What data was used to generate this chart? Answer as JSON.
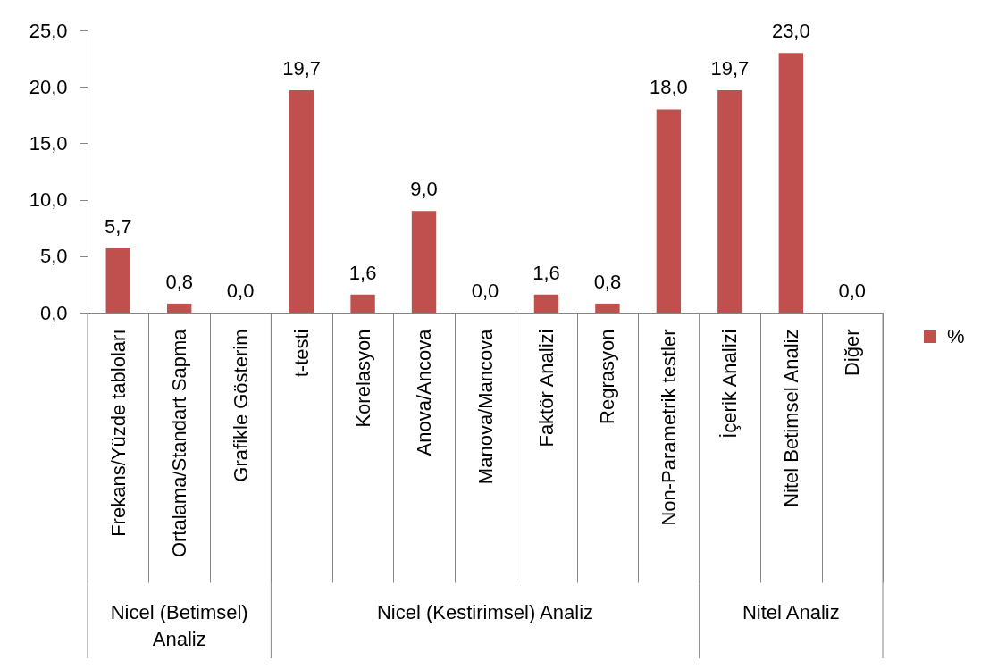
{
  "chart_data": {
    "type": "bar",
    "categories": [
      "Frekans/Yüzde tabloları",
      "Ortalama/Standart Sapma",
      "Grafikle Gösterim",
      "t-testi",
      "Korelasyon",
      "Anova/Ancova",
      "Manova/Mancova",
      "Faktör Analizi",
      "Regrasyon",
      "Non-Parametrik testler",
      "İçerik Analizi",
      "Nitel Betimsel Analiz",
      "Diğer"
    ],
    "series": [
      {
        "name": "%",
        "color": "#c0504d",
        "values": [
          5.7,
          0.8,
          0.0,
          19.7,
          1.6,
          9.0,
          0.0,
          1.6,
          0.8,
          18.0,
          19.7,
          23.0,
          0.0
        ],
        "value_labels": [
          "5,7",
          "0,8",
          "0,0",
          "19,7",
          "1,6",
          "9,0",
          "0,0",
          "1,6",
          "0,8",
          "18,0",
          "19,7",
          "23,0",
          "0,0"
        ]
      }
    ],
    "ylim": [
      0,
      25
    ],
    "yticks": [
      {
        "value": 0,
        "label": "0,0"
      },
      {
        "value": 5,
        "label": "5,0"
      },
      {
        "value": 10,
        "label": "10,0"
      },
      {
        "value": 15,
        "label": "15,0"
      },
      {
        "value": 20,
        "label": "20,0"
      },
      {
        "value": 25,
        "label": "25,0"
      }
    ],
    "annotations": [
      "Nicel (Betimsel) Analiz",
      "Nicel (Kestirimsel) Analiz",
      "Nitel Analiz"
    ],
    "legend": "right"
  }
}
